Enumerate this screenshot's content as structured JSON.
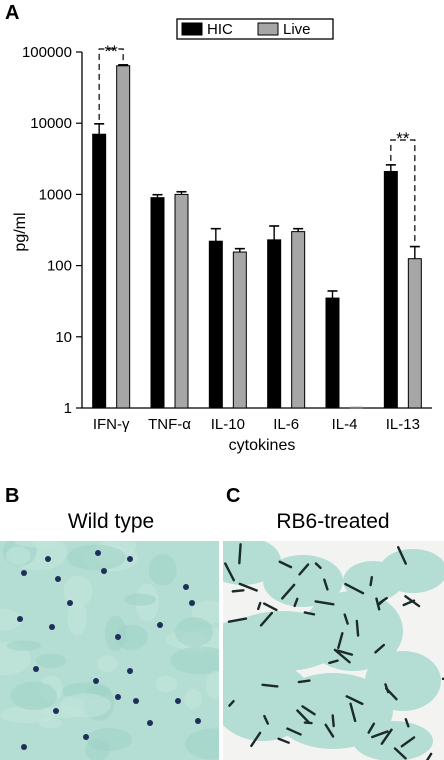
{
  "panels": {
    "a_label": "A",
    "b_label": "B",
    "c_label": "C",
    "b_title": "Wild type",
    "c_title": "RB6-treated"
  },
  "colors": {
    "hic": "#000000",
    "live": "#a6a6a6",
    "tissue_bg": "#b4ddd3",
    "tissue_deep": "#9fd2c6",
    "cell_dark": "#1e2f5a",
    "hyphae": "#1b2a2a",
    "clear_bg": "#f3f3f1"
  },
  "chart_data": {
    "type": "bar",
    "title": "",
    "xlabel": "cytokines",
    "ylabel": "pg/ml",
    "yscale": "log",
    "ylim": [
      1,
      100000
    ],
    "yticks": [
      "1",
      "10",
      "100",
      "1000",
      "10000",
      "100000"
    ],
    "categories": [
      "IFN-γ",
      "TNF-α",
      "IL-10",
      "IL-6",
      "IL-4",
      "IL-13"
    ],
    "legend": {
      "placement": "top-right",
      "entries": [
        "HIC",
        "Live"
      ]
    },
    "series": [
      {
        "name": "HIC",
        "values": [
          7000,
          900,
          220,
          230,
          35,
          2100
        ],
        "errors": [
          2800,
          90,
          110,
          130,
          9,
          500
        ]
      },
      {
        "name": "Live",
        "values": [
          64000,
          1000,
          155,
          300,
          1,
          125
        ],
        "errors": [
          2000,
          90,
          18,
          30,
          0,
          60
        ]
      }
    ],
    "annotations": [
      {
        "text": "**",
        "between": "IFN-γ HIC and Live"
      },
      {
        "text": "**",
        "between": "IL-13 HIC and Live"
      }
    ]
  }
}
